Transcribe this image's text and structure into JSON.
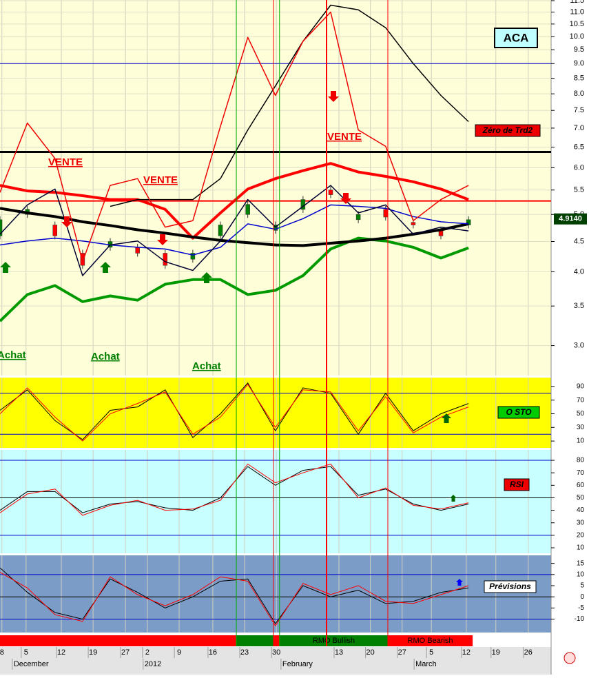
{
  "chart_data": [
    {
      "type": "candlestick",
      "title": "ACA",
      "tag": "Zéro de Trd2",
      "x": [
        -0.82,
        0.04,
        0.91,
        1.78,
        2.65,
        3.51,
        4.38,
        5.25,
        6.12,
        6.98,
        7.85,
        8.72,
        9.59,
        10.46,
        11.32,
        12.19,
        13.06,
        13.93
      ],
      "open": [
        4.6,
        5.0,
        4.8,
        4.3,
        4.4,
        4.4,
        4.3,
        4.2,
        4.6,
        5.0,
        4.7,
        5.1,
        5.5,
        4.9,
        5.1,
        4.85,
        4.7,
        4.8
      ],
      "close": [
        4.9,
        5.1,
        4.6,
        4.1,
        4.5,
        4.3,
        4.1,
        4.3,
        4.8,
        5.2,
        4.8,
        5.3,
        5.4,
        5.0,
        4.95,
        4.8,
        4.6,
        4.9
      ],
      "up_color": "#008000",
      "down_color": "#ff0000",
      "series": [
        {
          "color": "#ff0000",
          "values": [
            5.6,
            5.48,
            5.45,
            5.38,
            5.3,
            5.3,
            5.1,
            4.56,
            5.03,
            5.52,
            5.75,
            5.93,
            6.1,
            5.9,
            5.8,
            5.68,
            5.52,
            5.3
          ]
        },
        {
          "color": "#009900",
          "values": [
            3.3,
            3.66,
            3.79,
            3.56,
            3.64,
            3.58,
            3.81,
            3.88,
            3.88,
            3.66,
            3.72,
            3.94,
            4.37,
            4.56,
            4.51,
            4.4,
            4.22,
            4.39
          ]
        },
        {
          "color": "#000000",
          "values": [
            5.12,
            5.03,
            4.96,
            4.86,
            4.79,
            4.71,
            4.65,
            4.58,
            4.52,
            4.48,
            4.44,
            4.43,
            4.47,
            4.51,
            4.56,
            4.63,
            4.71,
            4.82
          ]
        },
        {
          "color": "#0000cc",
          "values": [
            4.44,
            4.51,
            4.56,
            4.51,
            4.44,
            4.4,
            4.37,
            4.27,
            4.4,
            4.82,
            4.72,
            4.92,
            5.19,
            5.16,
            5.12,
            4.96,
            4.86,
            4.82
          ]
        },
        {
          "color": "#000033",
          "values": [
            4.63,
            5.19,
            5.52,
            3.94,
            4.44,
            4.51,
            4.16,
            4.02,
            4.51,
            5.3,
            4.76,
            5.16,
            5.6,
            5.03,
            5.19,
            4.63,
            4.76,
            4.69
          ]
        },
        {
          "color": "#000000",
          "values": [
            null,
            null,
            null,
            null,
            5.16,
            5.3,
            5.3,
            5.3,
            5.75,
            6.95,
            8.25,
            9.82,
            11.3,
            11.1,
            10.35,
            9.0,
            7.95,
            7.18
          ]
        },
        {
          "color": "#ee0000",
          "values": [
            5.45,
            7.14,
            6.22,
            4.16,
            5.6,
            5.75,
            4.76,
            4.88,
            7.05,
            9.97,
            7.95,
            9.82,
            11.0,
            6.95,
            6.52,
            4.88,
            5.3,
            5.6
          ]
        }
      ],
      "log_scale": true,
      "ylim": [
        2.67,
        11.53
      ],
      "yticks": [
        {
          "value": 3,
          "label": "3.0"
        },
        3.5,
        {
          "value": 4,
          "label": "4.0"
        },
        4.5,
        {
          "value": 5,
          "label": "5.0"
        },
        5.5,
        {
          "value": 6,
          "label": "6.0"
        },
        6.5,
        {
          "value": 7,
          "label": "7.0"
        },
        7.5,
        {
          "value": 8,
          "label": "8.0"
        },
        8.5,
        {
          "value": 9,
          "label": "9.0"
        },
        9.5,
        {
          "value": 10,
          "label": "10.0"
        },
        10.5,
        {
          "value": 11,
          "label": "11.0"
        },
        11.5
      ],
      "xlim": [
        -0.82,
        16.53
      ],
      "xticks": [
        {
          "value": -0.76,
          "label": "8"
        },
        {
          "value": 0.0,
          "label": "5"
        },
        {
          "value": 1.11,
          "label": "12"
        },
        {
          "value": 2.11,
          "label": "19"
        },
        {
          "value": 3.13,
          "label": "27"
        },
        {
          "value": 3.82,
          "label": "2"
        },
        {
          "value": 4.82,
          "label": "9"
        },
        {
          "value": 5.88,
          "label": "16"
        },
        {
          "value": 6.88,
          "label": "23"
        },
        {
          "value": 7.88,
          "label": "30"
        },
        {
          "value": 9.85,
          "label": "13"
        },
        {
          "value": 10.84,
          "label": "20"
        },
        {
          "value": 11.84,
          "label": "27"
        },
        {
          "value": 12.76,
          "label": "5"
        },
        {
          "value": 13.86,
          "label": "12"
        },
        {
          "value": 14.79,
          "label": "19"
        },
        {
          "value": 15.81,
          "label": "26"
        }
      ],
      "months": [
        {
          "value": -0.39,
          "label": "December"
        },
        {
          "value": 3.73,
          "label": "2012"
        },
        {
          "value": 8.07,
          "label": "February"
        },
        {
          "value": 12.26,
          "label": "March"
        }
      ],
      "hlines": [
        {
          "value": 6.38,
          "color": "#000000"
        },
        {
          "value": 5.27,
          "color": "#ff0000"
        },
        {
          "value": 9.0,
          "color": "#0000cc"
        }
      ],
      "vlines": [
        {
          "value": 6.62,
          "color": "#00aa00"
        },
        {
          "value": 7.79,
          "color": "#ff0000"
        },
        {
          "value": 7.98,
          "color": "#00aa00"
        },
        {
          "value": 9.46,
          "color": "#ff0000"
        },
        {
          "value": 11.39,
          "color": "#ff0000"
        }
      ],
      "last_price": {
        "value": 4.914,
        "label": "4.9140"
      },
      "annotations": [
        "VENTE",
        "VENTE",
        "VENTE",
        "Achat",
        "Achat",
        "Achat"
      ]
    },
    {
      "type": "line",
      "label": "O STO",
      "ylim": [
        0,
        103
      ],
      "yticks": [
        90,
        70,
        50,
        30,
        10
      ],
      "hlines": [
        {
          "value": 80,
          "color": "#0000cc"
        },
        {
          "value": 20,
          "color": "#0000cc"
        }
      ],
      "series": [
        {
          "color": "#000000",
          "values": [
            55,
            85,
            40,
            12,
            55,
            60,
            85,
            15,
            50,
            95,
            25,
            88,
            80,
            20,
            80,
            25,
            50,
            65
          ]
        },
        {
          "color": "#ff0000",
          "values": [
            50,
            88,
            45,
            10,
            50,
            65,
            82,
            20,
            45,
            93,
            30,
            85,
            82,
            25,
            75,
            22,
            45,
            60
          ]
        }
      ]
    },
    {
      "type": "line",
      "label": "RSI",
      "ylim": [
        5.6,
        88.3
      ],
      "yticks": [
        80,
        70,
        60,
        50,
        40,
        30,
        20,
        10
      ],
      "hlines": [
        {
          "value": 80,
          "color": "#0000cc"
        },
        {
          "value": 50,
          "color": "#000000"
        },
        {
          "value": 20,
          "color": "#0000cc"
        }
      ],
      "series": [
        {
          "color": "#000000",
          "values": [
            40,
            55,
            55,
            38,
            45,
            47,
            42,
            40,
            50,
            75,
            60,
            72,
            75,
            52,
            57,
            45,
            40,
            45
          ]
        },
        {
          "color": "#ff0000",
          "values": [
            38,
            53,
            57,
            36,
            44,
            48,
            40,
            41,
            48,
            77,
            62,
            70,
            77,
            50,
            58,
            44,
            41,
            46
          ]
        }
      ]
    },
    {
      "type": "line",
      "label": "Prévisions",
      "ylim": [
        -16,
        18.6
      ],
      "yticks": [
        15,
        10,
        5,
        0,
        -5,
        -10
      ],
      "hlines": [
        {
          "value": 10,
          "color": "#0000cc"
        },
        {
          "value": 0,
          "color": "#000000"
        },
        {
          "value": -10,
          "color": "#0000cc"
        }
      ],
      "series": [
        {
          "color": "#000000",
          "values": [
            13,
            2,
            -7,
            -10,
            8,
            2,
            -5,
            0,
            7,
            8,
            -12,
            5,
            0,
            3,
            -3,
            -2,
            2,
            4
          ]
        },
        {
          "color": "#ff0000",
          "values": [
            11,
            4,
            -8,
            -11,
            9,
            1,
            -4,
            1,
            9,
            7,
            -13,
            6,
            1,
            5,
            -2,
            -3,
            1,
            5
          ]
        }
      ]
    },
    {
      "type": "band",
      "segments": [
        {
          "start": -0.82,
          "end": 6.62,
          "color": "#ff0000"
        },
        {
          "start": 6.62,
          "end": 7.79,
          "color": "#008000"
        },
        {
          "start": 7.79,
          "end": 7.98,
          "color": "#ff0000"
        },
        {
          "start": 7.98,
          "end": 11.39,
          "color": "#008000",
          "label": "RMO Bullish"
        },
        {
          "start": 11.39,
          "end": 14.06,
          "color": "#ff0000",
          "label": "RMO Bearish"
        }
      ]
    }
  ]
}
